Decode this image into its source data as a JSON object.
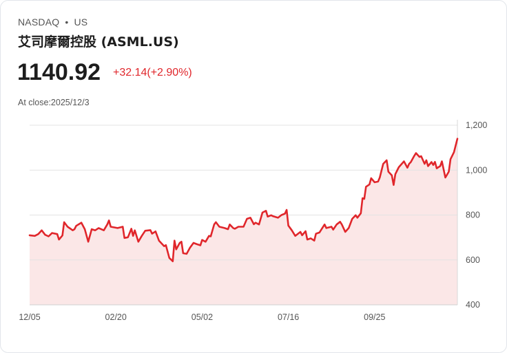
{
  "header": {
    "exchange": "NASDAQ",
    "separator": "•",
    "market": "US",
    "name": "艾司摩爾控股 (ASML.US)",
    "price": "1140.92",
    "change": "+32.14(+2.90%)",
    "close_label": "At close:2025/12/3"
  },
  "colors": {
    "line": "#e0262b",
    "fill": "#fbe7e7",
    "grid": "#e3e3e3"
  },
  "chart_data": {
    "type": "area",
    "xlabel": "",
    "ylabel": "",
    "ylim": [
      400,
      1200
    ],
    "xlim": [
      0,
      248
    ],
    "y_ticks": [
      {
        "value": 1200,
        "label": "1,200"
      },
      {
        "value": 1000,
        "label": "1,000"
      },
      {
        "value": 800,
        "label": "800"
      },
      {
        "value": 600,
        "label": "600"
      },
      {
        "value": 400,
        "label": "400"
      }
    ],
    "x_ticks": [
      {
        "day": 0,
        "label": "12/05"
      },
      {
        "day": 50,
        "label": "02/20"
      },
      {
        "day": 100,
        "label": "05/02"
      },
      {
        "day": 150,
        "label": "07/16"
      },
      {
        "day": 200,
        "label": "09/25"
      }
    ],
    "grid": true,
    "series": [
      {
        "name": "ASML.US",
        "points": [
          [
            0,
            710
          ],
          [
            3,
            707
          ],
          [
            5,
            715
          ],
          [
            7,
            732
          ],
          [
            9,
            712
          ],
          [
            11,
            705
          ],
          [
            13,
            720
          ],
          [
            16,
            715
          ],
          [
            17,
            691
          ],
          [
            19,
            709
          ],
          [
            20,
            768
          ],
          [
            22,
            748
          ],
          [
            25,
            732
          ],
          [
            26,
            737
          ],
          [
            27,
            752
          ],
          [
            30,
            766
          ],
          [
            32,
            737
          ],
          [
            34,
            681
          ],
          [
            36,
            737
          ],
          [
            38,
            732
          ],
          [
            40,
            742
          ],
          [
            43,
            732
          ],
          [
            45,
            758
          ],
          [
            46,
            776
          ],
          [
            47,
            748
          ],
          [
            51,
            742
          ],
          [
            54,
            748
          ],
          [
            55,
            698
          ],
          [
            57,
            701
          ],
          [
            59,
            739
          ],
          [
            60,
            707
          ],
          [
            61,
            732
          ],
          [
            63,
            681
          ],
          [
            65,
            707
          ],
          [
            67,
            730
          ],
          [
            70,
            733
          ],
          [
            71,
            717
          ],
          [
            73,
            727
          ],
          [
            75,
            686
          ],
          [
            78,
            661
          ],
          [
            79,
            666
          ],
          [
            81,
            609
          ],
          [
            83,
            594
          ],
          [
            84,
            686
          ],
          [
            85,
            647
          ],
          [
            87,
            676
          ],
          [
            88,
            681
          ],
          [
            89,
            630
          ],
          [
            91,
            627
          ],
          [
            93,
            655
          ],
          [
            95,
            676
          ],
          [
            97,
            670
          ],
          [
            99,
            665
          ],
          [
            100,
            689
          ],
          [
            102,
            681
          ],
          [
            104,
            707
          ],
          [
            105,
            705
          ],
          [
            107,
            758
          ],
          [
            108,
            768
          ],
          [
            110,
            748
          ],
          [
            113,
            742
          ],
          [
            115,
            737
          ],
          [
            116,
            758
          ],
          [
            118,
            742
          ],
          [
            119,
            739
          ],
          [
            121,
            748
          ],
          [
            124,
            748
          ],
          [
            126,
            783
          ],
          [
            128,
            788
          ],
          [
            130,
            759
          ],
          [
            131,
            766
          ],
          [
            133,
            758
          ],
          [
            135,
            811
          ],
          [
            137,
            819
          ],
          [
            138,
            793
          ],
          [
            140,
            799
          ],
          [
            141,
            795
          ],
          [
            144,
            788
          ],
          [
            146,
            800
          ],
          [
            148,
            806
          ],
          [
            149,
            823
          ],
          [
            150,
            753
          ],
          [
            152,
            732
          ],
          [
            154,
            707
          ],
          [
            157,
            725
          ],
          [
            158,
            710
          ],
          [
            160,
            728
          ],
          [
            161,
            691
          ],
          [
            163,
            696
          ],
          [
            165,
            686
          ],
          [
            166,
            717
          ],
          [
            168,
            722
          ],
          [
            171,
            758
          ],
          [
            172,
            742
          ],
          [
            175,
            748
          ],
          [
            176,
            735
          ],
          [
            178,
            758
          ],
          [
            180,
            770
          ],
          [
            181,
            758
          ],
          [
            183,
            725
          ],
          [
            185,
            742
          ],
          [
            187,
            783
          ],
          [
            189,
            799
          ],
          [
            190,
            788
          ],
          [
            192,
            808
          ],
          [
            193,
            875
          ],
          [
            194,
            872
          ],
          [
            195,
            926
          ],
          [
            197,
            936
          ],
          [
            198,
            964
          ],
          [
            200,
            946
          ],
          [
            202,
            949
          ],
          [
            203,
            967
          ],
          [
            205,
            1028
          ],
          [
            207,
            1044
          ],
          [
            208,
            993
          ],
          [
            210,
            977
          ],
          [
            211,
            934
          ],
          [
            212,
            982
          ],
          [
            214,
            1013
          ],
          [
            217,
            1039
          ],
          [
            219,
            1011
          ],
          [
            220,
            1028
          ],
          [
            221,
            1036
          ],
          [
            223,
            1064
          ],
          [
            224,
            1076
          ],
          [
            226,
            1059
          ],
          [
            227,
            1062
          ],
          [
            229,
            1028
          ],
          [
            230,
            1044
          ],
          [
            231,
            1018
          ],
          [
            233,
            1036
          ],
          [
            234,
            1023
          ],
          [
            235,
            1037
          ],
          [
            236,
            1008
          ],
          [
            238,
            1018
          ],
          [
            239,
            1039
          ],
          [
            241,
            967
          ],
          [
            243,
            993
          ],
          [
            244,
            1049
          ],
          [
            246,
            1080
          ],
          [
            248,
            1140
          ]
        ]
      }
    ]
  }
}
